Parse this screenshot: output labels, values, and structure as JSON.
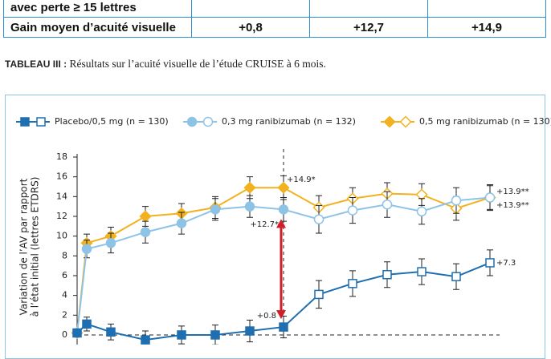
{
  "table": {
    "rows": [
      {
        "label": "avec perte ≥ 15 lettres"
      },
      {
        "label": "Gain moyen d’acuité visuelle",
        "values": [
          "+0,8",
          "+12,7",
          "+14,9"
        ]
      }
    ]
  },
  "caption": {
    "label": "TABLEAU III :",
    "text": "Résultats sur l’acuité visuelle de l’étude CRUISE à 6 mois."
  },
  "chart_data": {
    "type": "line",
    "ylabel": [
      "Variation de l’AV par rapport",
      "à l’état initial (lettres ETDRS)"
    ],
    "categories": [
      null,
      null,
      null,
      null,
      null,
      null,
      null,
      null,
      null,
      null,
      null,
      null,
      null,
      null
    ],
    "ylim": [
      -1,
      18
    ],
    "yticks": [
      0,
      2,
      4,
      6,
      8,
      10,
      12,
      14,
      16,
      18
    ],
    "open_markers_from": 8,
    "series": [
      {
        "name": "Placebo/0,5 mg (n = 130)",
        "color": "#1f6fb0",
        "marker": "square",
        "values": [
          0.2,
          1.1,
          0.3,
          -0.5,
          0,
          0,
          0.4,
          0.8,
          4.1,
          5.2,
          6.1,
          6.4,
          5.9,
          7.3
        ],
        "errors": [
          0.6,
          0.7,
          0.8,
          0.9,
          0.9,
          1.0,
          1.1,
          1.1,
          1.4,
          1.3,
          1.3,
          1.3,
          1.3,
          1.3
        ]
      },
      {
        "name": "0,3 mg ranibizumab (n = 132)",
        "color": "#8ec3e6",
        "marker": "circle",
        "values": [
          0.2,
          8.7,
          9.3,
          10.4,
          11.3,
          12.7,
          13.0,
          12.7,
          11.7,
          12.6,
          13.2,
          12.5,
          13.6,
          13.9
        ],
        "errors": [
          0.5,
          0.9,
          1.0,
          1.1,
          1.1,
          1.1,
          1.1,
          1.2,
          1.4,
          1.3,
          1.3,
          1.3,
          1.3,
          1.3
        ]
      },
      {
        "name": "0,5 mg ranibizumab (n = 130)",
        "color": "#f2b21f",
        "marker": "diamond",
        "values": [
          0.2,
          9.3,
          10.0,
          12.0,
          12.3,
          12.9,
          14.9,
          14.9,
          12.9,
          13.8,
          14.3,
          14.2,
          12.8,
          13.9
        ],
        "errors": [
          0.5,
          0.9,
          0.9,
          1.0,
          1.0,
          1.1,
          1.1,
          1.2,
          1.2,
          1.1,
          1.1,
          1.1,
          1.2,
          1.2
        ]
      }
    ],
    "annotations": [
      "+14.9*",
      "+12.7*",
      "+0.8",
      "+7.3",
      "+13.9**",
      "+13.9**"
    ]
  }
}
